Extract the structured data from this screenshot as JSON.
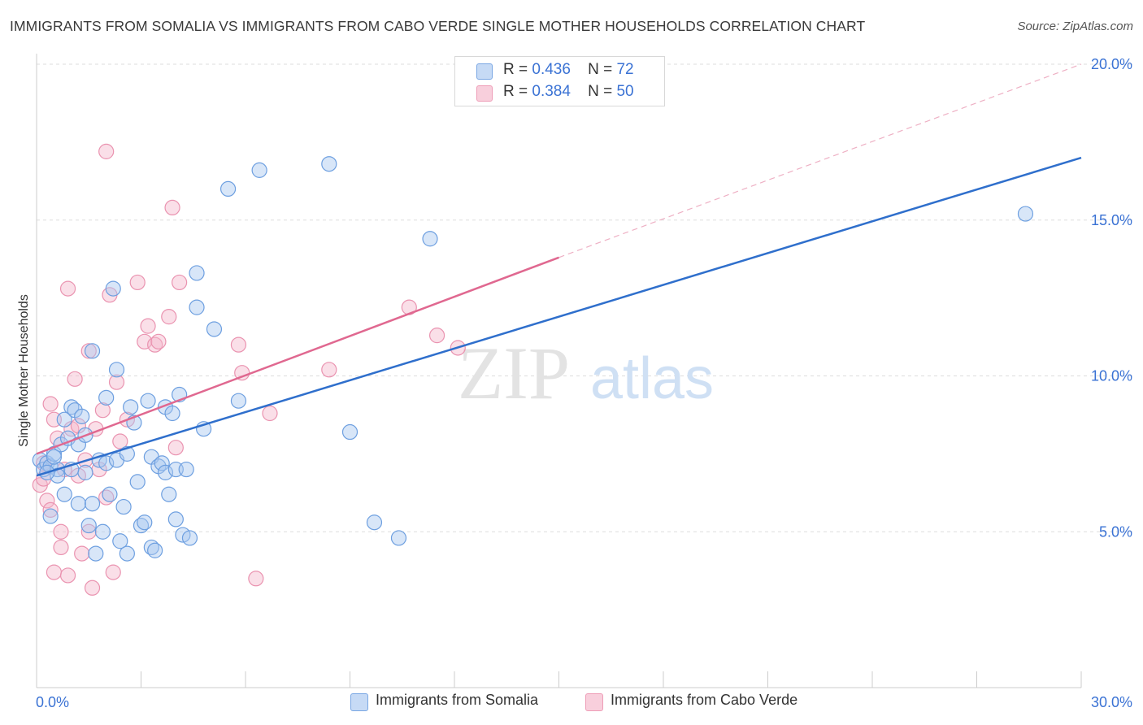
{
  "title": "IMMIGRANTS FROM SOMALIA VS IMMIGRANTS FROM CABO VERDE SINGLE MOTHER HOUSEHOLDS CORRELATION CHART",
  "source": "Source: ZipAtlas.com",
  "watermark": {
    "zip": "ZIP",
    "atlas": "atlas"
  },
  "legend": {
    "r_label": "R =",
    "n_label": "N =",
    "somalia": {
      "r": "0.436",
      "n": "72"
    },
    "caboverde": {
      "r": "0.384",
      "n": "50"
    }
  },
  "colors": {
    "somalia_fill": "#a9c8f0",
    "somalia_stroke": "#6d9fe0",
    "somalia_line": "#2f6fcc",
    "caboverde_fill": "#f5b8cb",
    "caboverde_stroke": "#ea93b0",
    "caboverde_line": "#e06890",
    "tick_text": "#3a72d4",
    "grid": "#dddddd"
  },
  "chart_data": {
    "type": "scatter",
    "title": "IMMIGRANTS FROM SOMALIA VS IMMIGRANTS FROM CABO VERDE SINGLE MOTHER HOUSEHOLDS CORRELATION CHART",
    "xlabel": "",
    "ylabel": "Single Mother Households",
    "xlim": [
      0,
      30
    ],
    "ylim": [
      0,
      20
    ],
    "x_tick_labels": [
      "0.0%",
      "30.0%"
    ],
    "y_ticks": [
      5,
      10,
      15,
      20
    ],
    "y_tick_labels": [
      "5.0%",
      "10.0%",
      "15.0%",
      "20.0%"
    ],
    "grid": true,
    "legend_position": "top-center",
    "series": [
      {
        "name": "Immigrants from Somalia",
        "r": 0.436,
        "n": 72,
        "trend": {
          "x": [
            0,
            30
          ],
          "y": [
            6.8,
            17.0
          ]
        },
        "points": [
          [
            0.1,
            7.3
          ],
          [
            0.2,
            7.0
          ],
          [
            0.3,
            7.2
          ],
          [
            0.4,
            7.1
          ],
          [
            0.4,
            5.5
          ],
          [
            0.5,
            7.5
          ],
          [
            0.6,
            7.0
          ],
          [
            0.6,
            6.8
          ],
          [
            0.7,
            7.8
          ],
          [
            0.8,
            8.6
          ],
          [
            0.8,
            6.2
          ],
          [
            0.9,
            8.0
          ],
          [
            1.0,
            9.0
          ],
          [
            1.1,
            8.9
          ],
          [
            1.2,
            7.8
          ],
          [
            1.2,
            5.9
          ],
          [
            1.3,
            8.7
          ],
          [
            1.4,
            8.1
          ],
          [
            1.4,
            6.9
          ],
          [
            1.5,
            5.2
          ],
          [
            1.6,
            10.8
          ],
          [
            1.6,
            5.9
          ],
          [
            1.7,
            4.3
          ],
          [
            1.8,
            7.3
          ],
          [
            1.9,
            5.0
          ],
          [
            2.0,
            9.3
          ],
          [
            2.0,
            7.2
          ],
          [
            2.1,
            6.2
          ],
          [
            2.2,
            12.8
          ],
          [
            2.3,
            7.3
          ],
          [
            2.3,
            10.2
          ],
          [
            2.4,
            4.7
          ],
          [
            2.5,
            5.8
          ],
          [
            2.6,
            4.3
          ],
          [
            2.6,
            7.5
          ],
          [
            2.7,
            9.0
          ],
          [
            2.8,
            8.5
          ],
          [
            2.9,
            6.6
          ],
          [
            3.0,
            5.2
          ],
          [
            3.1,
            5.3
          ],
          [
            3.2,
            9.2
          ],
          [
            3.3,
            4.5
          ],
          [
            3.3,
            7.4
          ],
          [
            3.4,
            4.4
          ],
          [
            3.5,
            7.1
          ],
          [
            3.6,
            7.2
          ],
          [
            3.7,
            9.0
          ],
          [
            3.7,
            6.9
          ],
          [
            3.8,
            6.2
          ],
          [
            3.9,
            8.8
          ],
          [
            4.0,
            5.4
          ],
          [
            4.0,
            7.0
          ],
          [
            4.1,
            9.4
          ],
          [
            4.2,
            4.9
          ],
          [
            4.3,
            7.0
          ],
          [
            4.4,
            4.8
          ],
          [
            4.6,
            13.3
          ],
          [
            4.6,
            12.2
          ],
          [
            4.8,
            8.3
          ],
          [
            5.1,
            11.5
          ],
          [
            5.5,
            16.0
          ],
          [
            5.8,
            9.2
          ],
          [
            6.4,
            16.6
          ],
          [
            8.4,
            16.8
          ],
          [
            9.0,
            8.2
          ],
          [
            9.7,
            5.3
          ],
          [
            10.4,
            4.8
          ],
          [
            11.3,
            14.4
          ],
          [
            28.4,
            15.2
          ],
          [
            0.5,
            7.4
          ],
          [
            0.3,
            6.9
          ],
          [
            1.0,
            7.0
          ]
        ]
      },
      {
        "name": "Immigrants from Cabo Verde",
        "r": 0.384,
        "n": 50,
        "trend": {
          "x": [
            0,
            15
          ],
          "y": [
            7.5,
            13.8
          ]
        },
        "trend_extension": {
          "x": [
            15,
            30
          ],
          "y": [
            13.8,
            20.0
          ]
        },
        "points": [
          [
            0.1,
            6.5
          ],
          [
            0.2,
            6.7
          ],
          [
            0.2,
            7.2
          ],
          [
            0.3,
            6.0
          ],
          [
            0.4,
            9.1
          ],
          [
            0.4,
            5.7
          ],
          [
            0.5,
            8.6
          ],
          [
            0.5,
            3.7
          ],
          [
            0.6,
            8.0
          ],
          [
            0.7,
            5.0
          ],
          [
            0.7,
            4.5
          ],
          [
            0.8,
            7.0
          ],
          [
            0.9,
            3.6
          ],
          [
            0.9,
            12.8
          ],
          [
            1.0,
            8.3
          ],
          [
            1.1,
            9.9
          ],
          [
            1.2,
            8.4
          ],
          [
            1.2,
            6.8
          ],
          [
            1.3,
            4.3
          ],
          [
            1.4,
            7.3
          ],
          [
            1.5,
            10.8
          ],
          [
            1.5,
            5.0
          ],
          [
            1.6,
            3.2
          ],
          [
            1.7,
            8.3
          ],
          [
            1.8,
            7.0
          ],
          [
            1.9,
            8.9
          ],
          [
            2.0,
            17.2
          ],
          [
            2.0,
            6.1
          ],
          [
            2.1,
            12.6
          ],
          [
            2.2,
            3.7
          ],
          [
            2.3,
            9.8
          ],
          [
            2.4,
            7.9
          ],
          [
            2.6,
            8.6
          ],
          [
            2.9,
            13.0
          ],
          [
            3.1,
            11.1
          ],
          [
            3.2,
            11.6
          ],
          [
            3.4,
            11.0
          ],
          [
            3.5,
            11.1
          ],
          [
            3.8,
            11.9
          ],
          [
            3.9,
            15.4
          ],
          [
            4.0,
            7.7
          ],
          [
            4.1,
            13.0
          ],
          [
            5.8,
            11.0
          ],
          [
            5.9,
            10.1
          ],
          [
            6.3,
            3.5
          ],
          [
            6.7,
            8.8
          ],
          [
            8.4,
            10.2
          ],
          [
            10.7,
            12.2
          ],
          [
            11.5,
            11.3
          ],
          [
            12.1,
            10.9
          ]
        ]
      }
    ]
  }
}
